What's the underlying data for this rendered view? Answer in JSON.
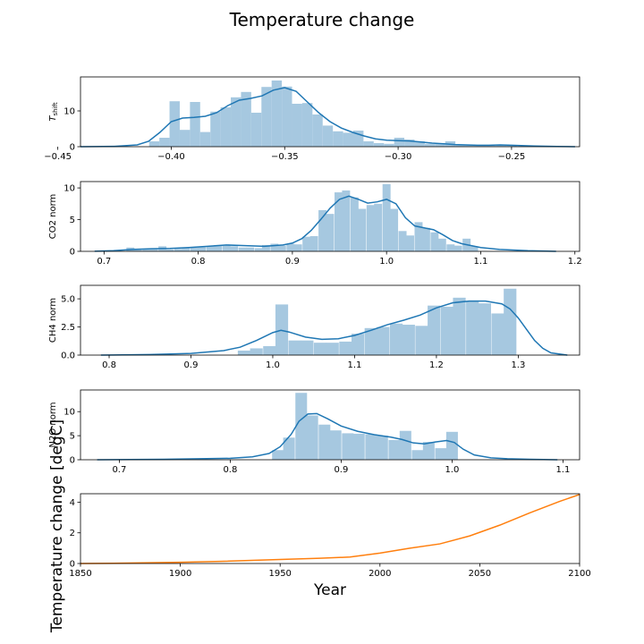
{
  "figure": {
    "title": "Temperature change",
    "shared_ylabel": "Temperature change [degC]"
  },
  "colors": {
    "hist": "#a6c8e0",
    "kde": "#1f77b4",
    "line": "#ff7f0e"
  },
  "chart_data": [
    {
      "type": "bar",
      "subtype": "histogram-with-kde",
      "ylabel": "T_shift",
      "xlim": [
        -0.44,
        -0.22
      ],
      "ylim": [
        0,
        19.5
      ],
      "xticks": [
        -0.45,
        -0.4,
        -0.35,
        -0.3,
        -0.25
      ],
      "xtick_labels": [
        "−0.45",
        "−0.40",
        "−0.35",
        "−0.30",
        "−0.25"
      ],
      "yticks": [
        0,
        10
      ],
      "ytick_labels": [
        "0",
        "10"
      ],
      "bin_width": 0.0045,
      "bins": [
        {
          "x": -0.4075,
          "h": 1.5
        },
        {
          "x": -0.403,
          "h": 2.5
        },
        {
          "x": -0.3985,
          "h": 12.7
        },
        {
          "x": -0.394,
          "h": 4.7
        },
        {
          "x": -0.3895,
          "h": 12.5
        },
        {
          "x": -0.385,
          "h": 4.1
        },
        {
          "x": -0.3805,
          "h": 9.8
        },
        {
          "x": -0.376,
          "h": 11.0
        },
        {
          "x": -0.3715,
          "h": 13.8
        },
        {
          "x": -0.367,
          "h": 15.3
        },
        {
          "x": -0.3625,
          "h": 9.5
        },
        {
          "x": -0.358,
          "h": 16.7
        },
        {
          "x": -0.3535,
          "h": 18.5
        },
        {
          "x": -0.349,
          "h": 16.8
        },
        {
          "x": -0.3445,
          "h": 12.0
        },
        {
          "x": -0.34,
          "h": 12.2
        },
        {
          "x": -0.3355,
          "h": 9.0
        },
        {
          "x": -0.331,
          "h": 5.9
        },
        {
          "x": -0.3265,
          "h": 4.3
        },
        {
          "x": -0.322,
          "h": 3.9
        },
        {
          "x": -0.3175,
          "h": 4.5
        },
        {
          "x": -0.313,
          "h": 1.5
        },
        {
          "x": -0.3085,
          "h": 1.0
        },
        {
          "x": -0.304,
          "h": 0.8
        },
        {
          "x": -0.2995,
          "h": 2.5
        },
        {
          "x": -0.295,
          "h": 2.0
        },
        {
          "x": -0.2905,
          "h": 1.5
        },
        {
          "x": -0.286,
          "h": 0.8
        },
        {
          "x": -0.2815,
          "h": 1.0
        },
        {
          "x": -0.277,
          "h": 1.5
        },
        {
          "x": -0.2725,
          "h": 0.6
        },
        {
          "x": -0.268,
          "h": 0.5
        },
        {
          "x": -0.2635,
          "h": 0.4
        },
        {
          "x": -0.259,
          "h": 0.3
        },
        {
          "x": -0.2545,
          "h": 0.5
        },
        {
          "x": -0.25,
          "h": 0.3
        }
      ],
      "kde": [
        {
          "x": -0.44,
          "y": 0.0
        },
        {
          "x": -0.425,
          "y": 0.1
        },
        {
          "x": -0.415,
          "y": 0.5
        },
        {
          "x": -0.41,
          "y": 1.5
        },
        {
          "x": -0.405,
          "y": 4.0
        },
        {
          "x": -0.4,
          "y": 7.0
        },
        {
          "x": -0.395,
          "y": 8.0
        },
        {
          "x": -0.39,
          "y": 8.2
        },
        {
          "x": -0.385,
          "y": 8.5
        },
        {
          "x": -0.38,
          "y": 9.5
        },
        {
          "x": -0.375,
          "y": 11.5
        },
        {
          "x": -0.37,
          "y": 13.0
        },
        {
          "x": -0.365,
          "y": 13.5
        },
        {
          "x": -0.36,
          "y": 14.2
        },
        {
          "x": -0.355,
          "y": 15.8
        },
        {
          "x": -0.35,
          "y": 16.5
        },
        {
          "x": -0.345,
          "y": 15.5
        },
        {
          "x": -0.34,
          "y": 12.5
        },
        {
          "x": -0.335,
          "y": 9.5
        },
        {
          "x": -0.33,
          "y": 7.0
        },
        {
          "x": -0.325,
          "y": 5.2
        },
        {
          "x": -0.32,
          "y": 4.0
        },
        {
          "x": -0.315,
          "y": 3.0
        },
        {
          "x": -0.31,
          "y": 2.2
        },
        {
          "x": -0.305,
          "y": 1.8
        },
        {
          "x": -0.3,
          "y": 1.7
        },
        {
          "x": -0.295,
          "y": 1.6
        },
        {
          "x": -0.29,
          "y": 1.3
        },
        {
          "x": -0.285,
          "y": 1.0
        },
        {
          "x": -0.28,
          "y": 0.8
        },
        {
          "x": -0.275,
          "y": 0.6
        },
        {
          "x": -0.27,
          "y": 0.5
        },
        {
          "x": -0.265,
          "y": 0.4
        },
        {
          "x": -0.26,
          "y": 0.4
        },
        {
          "x": -0.255,
          "y": 0.5
        },
        {
          "x": -0.25,
          "y": 0.4
        },
        {
          "x": -0.24,
          "y": 0.2
        },
        {
          "x": -0.23,
          "y": 0.05
        },
        {
          "x": -0.222,
          "y": 0.0
        }
      ]
    },
    {
      "type": "bar",
      "subtype": "histogram-with-kde",
      "ylabel": "CO2 norm",
      "xlim": [
        0.675,
        1.205
      ],
      "ylim": [
        0,
        11
      ],
      "xticks": [
        0.7,
        0.8,
        0.9,
        1.0,
        1.1,
        1.2
      ],
      "xtick_labels": [
        "0.7",
        "0.8",
        "0.9",
        "1.0",
        "1.1",
        "1.2"
      ],
      "yticks": [
        0,
        5,
        10
      ],
      "ytick_labels": [
        "0",
        "5",
        "10"
      ],
      "bin_width": 0.0085,
      "bins": [
        {
          "x": 0.728,
          "h": 0.6
        },
        {
          "x": 0.736,
          "h": 0.3
        },
        {
          "x": 0.745,
          "h": 0.3
        },
        {
          "x": 0.753,
          "h": 0.4
        },
        {
          "x": 0.762,
          "h": 0.8
        },
        {
          "x": 0.77,
          "h": 0.3
        },
        {
          "x": 0.779,
          "h": 0.4
        },
        {
          "x": 0.787,
          "h": 0.5
        },
        {
          "x": 0.796,
          "h": 0.6
        },
        {
          "x": 0.804,
          "h": 0.7
        },
        {
          "x": 0.813,
          "h": 0.8
        },
        {
          "x": 0.821,
          "h": 1.0
        },
        {
          "x": 0.83,
          "h": 0.9
        },
        {
          "x": 0.838,
          "h": 0.8
        },
        {
          "x": 0.847,
          "h": 0.6
        },
        {
          "x": 0.855,
          "h": 0.6
        },
        {
          "x": 0.864,
          "h": 0.5
        },
        {
          "x": 0.872,
          "h": 1.0
        },
        {
          "x": 0.881,
          "h": 1.2
        },
        {
          "x": 0.889,
          "h": 0.9
        },
        {
          "x": 0.898,
          "h": 1.2
        },
        {
          "x": 0.906,
          "h": 1.1
        },
        {
          "x": 0.915,
          "h": 2.3
        },
        {
          "x": 0.923,
          "h": 2.4
        },
        {
          "x": 0.932,
          "h": 6.5
        },
        {
          "x": 0.94,
          "h": 5.9
        },
        {
          "x": 0.949,
          "h": 9.3
        },
        {
          "x": 0.957,
          "h": 9.6
        },
        {
          "x": 0.966,
          "h": 8.5
        },
        {
          "x": 0.974,
          "h": 6.7
        },
        {
          "x": 0.983,
          "h": 7.3
        },
        {
          "x": 0.991,
          "h": 7.5
        },
        {
          "x": 1.0,
          "h": 10.6
        },
        {
          "x": 1.008,
          "h": 6.7
        },
        {
          "x": 1.017,
          "h": 3.2
        },
        {
          "x": 1.025,
          "h": 2.5
        },
        {
          "x": 1.034,
          "h": 4.6
        },
        {
          "x": 1.042,
          "h": 3.7
        },
        {
          "x": 1.051,
          "h": 3.0
        },
        {
          "x": 1.059,
          "h": 2.0
        },
        {
          "x": 1.068,
          "h": 1.1
        },
        {
          "x": 1.076,
          "h": 0.9
        },
        {
          "x": 1.085,
          "h": 2.0
        },
        {
          "x": 1.093,
          "h": 0.8
        }
      ],
      "kde": [
        {
          "x": 0.69,
          "y": 0.02
        },
        {
          "x": 0.71,
          "y": 0.1
        },
        {
          "x": 0.73,
          "y": 0.3
        },
        {
          "x": 0.75,
          "y": 0.4
        },
        {
          "x": 0.77,
          "y": 0.45
        },
        {
          "x": 0.79,
          "y": 0.6
        },
        {
          "x": 0.81,
          "y": 0.8
        },
        {
          "x": 0.83,
          "y": 1.0
        },
        {
          "x": 0.85,
          "y": 0.9
        },
        {
          "x": 0.87,
          "y": 0.8
        },
        {
          "x": 0.89,
          "y": 1.0
        },
        {
          "x": 0.9,
          "y": 1.3
        },
        {
          "x": 0.91,
          "y": 2.0
        },
        {
          "x": 0.92,
          "y": 3.3
        },
        {
          "x": 0.93,
          "y": 5.0
        },
        {
          "x": 0.94,
          "y": 6.8
        },
        {
          "x": 0.95,
          "y": 8.2
        },
        {
          "x": 0.96,
          "y": 8.7
        },
        {
          "x": 0.97,
          "y": 8.2
        },
        {
          "x": 0.98,
          "y": 7.6
        },
        {
          "x": 0.99,
          "y": 7.8
        },
        {
          "x": 1.0,
          "y": 8.2
        },
        {
          "x": 1.01,
          "y": 7.5
        },
        {
          "x": 1.02,
          "y": 5.3
        },
        {
          "x": 1.03,
          "y": 4.0
        },
        {
          "x": 1.04,
          "y": 3.7
        },
        {
          "x": 1.05,
          "y": 3.4
        },
        {
          "x": 1.06,
          "y": 2.6
        },
        {
          "x": 1.07,
          "y": 1.7
        },
        {
          "x": 1.08,
          "y": 1.2
        },
        {
          "x": 1.09,
          "y": 0.9
        },
        {
          "x": 1.1,
          "y": 0.6
        },
        {
          "x": 1.12,
          "y": 0.3
        },
        {
          "x": 1.15,
          "y": 0.1
        },
        {
          "x": 1.18,
          "y": 0.0
        }
      ]
    },
    {
      "type": "bar",
      "subtype": "histogram-with-kde",
      "ylabel": "CH4 norm",
      "xlim": [
        0.765,
        1.375
      ],
      "ylim": [
        0,
        6.2
      ],
      "xticks": [
        0.8,
        0.9,
        1.0,
        1.1,
        1.2,
        1.3
      ],
      "xtick_labels": [
        "0.8",
        "0.9",
        "1.0",
        "1.1",
        "1.2",
        "1.3"
      ],
      "yticks": [
        0,
        2.5,
        5
      ],
      "ytick_labels": [
        "0.0",
        "2.5",
        "5.0"
      ],
      "bin_width": 0.0155,
      "bins": [
        {
          "x": 0.965,
          "h": 0.4
        },
        {
          "x": 0.98,
          "h": 0.6
        },
        {
          "x": 0.996,
          "h": 0.8
        },
        {
          "x": 1.011,
          "h": 4.5
        },
        {
          "x": 1.027,
          "h": 1.3
        },
        {
          "x": 1.042,
          "h": 1.3
        },
        {
          "x": 1.058,
          "h": 1.1
        },
        {
          "x": 1.073,
          "h": 1.1
        },
        {
          "x": 1.089,
          "h": 1.2
        },
        {
          "x": 1.104,
          "h": 1.9
        },
        {
          "x": 1.12,
          "h": 2.4
        },
        {
          "x": 1.135,
          "h": 2.5
        },
        {
          "x": 1.151,
          "h": 2.8
        },
        {
          "x": 1.166,
          "h": 2.7
        },
        {
          "x": 1.182,
          "h": 2.6
        },
        {
          "x": 1.197,
          "h": 4.4
        },
        {
          "x": 1.213,
          "h": 4.3
        },
        {
          "x": 1.228,
          "h": 5.1
        },
        {
          "x": 1.244,
          "h": 4.8
        },
        {
          "x": 1.259,
          "h": 4.6
        },
        {
          "x": 1.275,
          "h": 3.7
        },
        {
          "x": 1.29,
          "h": 5.9
        }
      ],
      "kde": [
        {
          "x": 0.79,
          "y": 0.0
        },
        {
          "x": 0.85,
          "y": 0.05
        },
        {
          "x": 0.9,
          "y": 0.15
        },
        {
          "x": 0.94,
          "y": 0.4
        },
        {
          "x": 0.96,
          "y": 0.7
        },
        {
          "x": 0.98,
          "y": 1.3
        },
        {
          "x": 1.0,
          "y": 2.0
        },
        {
          "x": 1.01,
          "y": 2.2
        },
        {
          "x": 1.02,
          "y": 2.05
        },
        {
          "x": 1.04,
          "y": 1.6
        },
        {
          "x": 1.06,
          "y": 1.4
        },
        {
          "x": 1.08,
          "y": 1.45
        },
        {
          "x": 1.1,
          "y": 1.75
        },
        {
          "x": 1.12,
          "y": 2.2
        },
        {
          "x": 1.14,
          "y": 2.7
        },
        {
          "x": 1.16,
          "y": 3.1
        },
        {
          "x": 1.18,
          "y": 3.55
        },
        {
          "x": 1.2,
          "y": 4.2
        },
        {
          "x": 1.22,
          "y": 4.65
        },
        {
          "x": 1.24,
          "y": 4.8
        },
        {
          "x": 1.26,
          "y": 4.8
        },
        {
          "x": 1.28,
          "y": 4.55
        },
        {
          "x": 1.29,
          "y": 4.1
        },
        {
          "x": 1.3,
          "y": 3.3
        },
        {
          "x": 1.31,
          "y": 2.3
        },
        {
          "x": 1.32,
          "y": 1.3
        },
        {
          "x": 1.33,
          "y": 0.6
        },
        {
          "x": 1.34,
          "y": 0.2
        },
        {
          "x": 1.36,
          "y": 0.0
        }
      ]
    },
    {
      "type": "bar",
      "subtype": "histogram-with-kde",
      "ylabel": "N2O norm",
      "xlim": [
        0.665,
        1.115
      ],
      "ylim": [
        0,
        14.5
      ],
      "xticks": [
        0.7,
        0.8,
        0.9,
        1.0,
        1.1
      ],
      "xtick_labels": [
        "0.7",
        "0.8",
        "0.9",
        "1.0",
        "1.1"
      ],
      "yticks": [
        0,
        5,
        10
      ],
      "ytick_labels": [
        "0",
        "5",
        "10"
      ],
      "bin_width": 0.0105,
      "bins": [
        {
          "x": 0.843,
          "h": 2.0
        },
        {
          "x": 0.853,
          "h": 4.6
        },
        {
          "x": 0.864,
          "h": 13.9
        },
        {
          "x": 0.874,
          "h": 9.2
        },
        {
          "x": 0.885,
          "h": 7.3
        },
        {
          "x": 0.895,
          "h": 6.1
        },
        {
          "x": 0.906,
          "h": 5.5
        },
        {
          "x": 0.916,
          "h": 5.4
        },
        {
          "x": 0.927,
          "h": 5.3
        },
        {
          "x": 0.937,
          "h": 5.0
        },
        {
          "x": 0.948,
          "h": 4.1
        },
        {
          "x": 0.958,
          "h": 6.0
        },
        {
          "x": 0.969,
          "h": 2.0
        },
        {
          "x": 0.979,
          "h": 3.7
        },
        {
          "x": 0.99,
          "h": 2.4
        },
        {
          "x": 1.0,
          "h": 5.8
        }
      ],
      "kde": [
        {
          "x": 0.68,
          "y": 0.0
        },
        {
          "x": 0.74,
          "y": 0.1
        },
        {
          "x": 0.8,
          "y": 0.3
        },
        {
          "x": 0.82,
          "y": 0.6
        },
        {
          "x": 0.835,
          "y": 1.3
        },
        {
          "x": 0.845,
          "y": 2.7
        },
        {
          "x": 0.855,
          "y": 5.3
        },
        {
          "x": 0.862,
          "y": 8.0
        },
        {
          "x": 0.87,
          "y": 9.5
        },
        {
          "x": 0.878,
          "y": 9.6
        },
        {
          "x": 0.888,
          "y": 8.5
        },
        {
          "x": 0.9,
          "y": 7.0
        },
        {
          "x": 0.915,
          "y": 5.9
        },
        {
          "x": 0.93,
          "y": 5.2
        },
        {
          "x": 0.945,
          "y": 4.7
        },
        {
          "x": 0.955,
          "y": 4.2
        },
        {
          "x": 0.965,
          "y": 3.5
        },
        {
          "x": 0.975,
          "y": 3.3
        },
        {
          "x": 0.985,
          "y": 3.7
        },
        {
          "x": 0.995,
          "y": 4.0
        },
        {
          "x": 1.002,
          "y": 3.6
        },
        {
          "x": 1.01,
          "y": 2.2
        },
        {
          "x": 1.02,
          "y": 1.0
        },
        {
          "x": 1.035,
          "y": 0.4
        },
        {
          "x": 1.05,
          "y": 0.2
        },
        {
          "x": 1.07,
          "y": 0.1
        },
        {
          "x": 1.095,
          "y": 0.0
        }
      ]
    },
    {
      "type": "line",
      "xlabel": "Year",
      "xlim": [
        1850,
        2100
      ],
      "ylim": [
        0,
        4.55
      ],
      "xticks": [
        1850,
        1900,
        1950,
        2000,
        2050,
        2100
      ],
      "xtick_labels": [
        "1850",
        "1900",
        "1950",
        "2000",
        "2050",
        "2100"
      ],
      "yticks": [
        0,
        2,
        4
      ],
      "ytick_labels": [
        "0",
        "2",
        "4"
      ],
      "series": [
        {
          "x": [
            1850,
            1870,
            1900,
            1920,
            1950,
            1970,
            1985,
            2000,
            2015,
            2030,
            2045,
            2060,
            2075,
            2090,
            2100
          ],
          "values": [
            0.0,
            0.02,
            0.08,
            0.14,
            0.26,
            0.34,
            0.42,
            0.68,
            1.0,
            1.28,
            1.8,
            2.5,
            3.3,
            4.05,
            4.5
          ]
        }
      ]
    }
  ]
}
